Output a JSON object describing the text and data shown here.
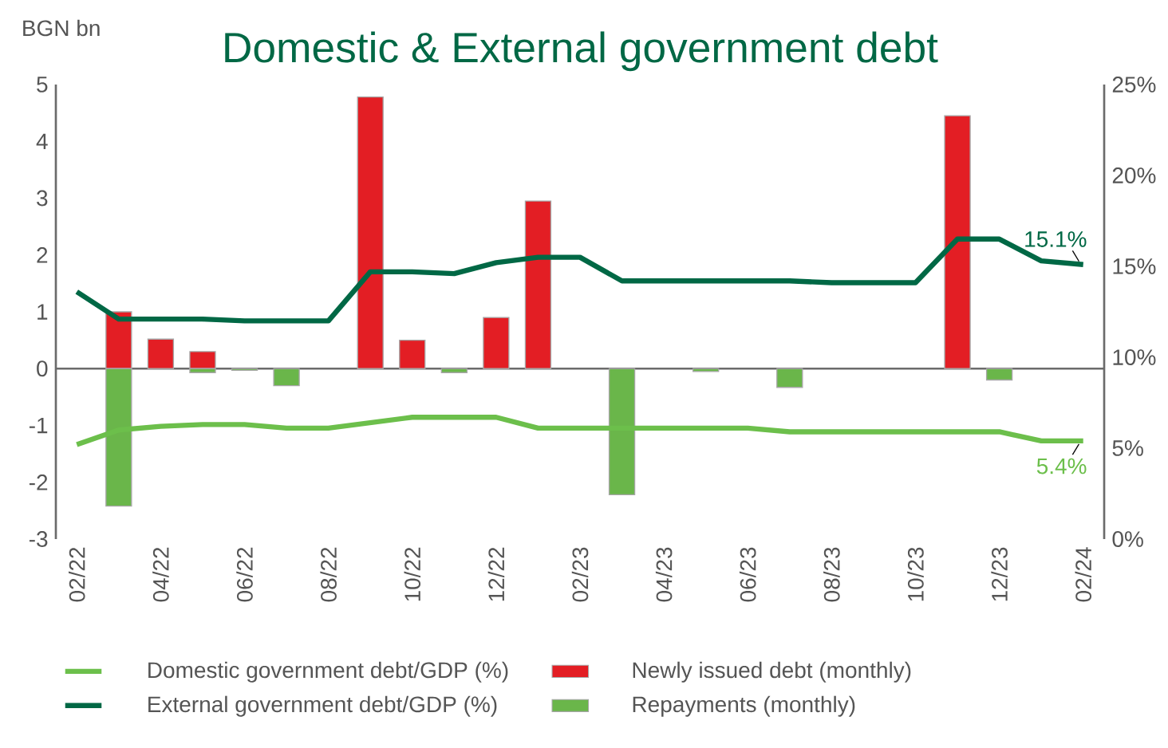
{
  "chart_data": {
    "type": "bar",
    "title": "Domestic & External government debt",
    "ylabel": "BGN bn",
    "categories": [
      "02/22",
      null,
      "04/22",
      null,
      "06/22",
      null,
      "08/22",
      null,
      "10/22",
      null,
      "12/22",
      null,
      "02/23",
      null,
      "04/23",
      null,
      "06/23",
      null,
      "08/23",
      null,
      "10/23",
      null,
      "12/23",
      null,
      "02/24"
    ],
    "series": [
      {
        "name": "Domestic government debt/GDP (%)",
        "type": "line",
        "axis": "y2",
        "color": "#6cbf4b",
        "values": [
          5.2,
          6.0,
          6.2,
          6.3,
          6.3,
          6.1,
          6.1,
          6.4,
          6.7,
          6.7,
          6.7,
          6.1,
          6.1,
          6.1,
          6.1,
          6.1,
          6.1,
          5.9,
          5.9,
          5.9,
          5.9,
          5.9,
          5.9,
          5.4,
          5.4
        ],
        "value_labels": [
          null,
          null,
          null,
          null,
          null,
          null,
          null,
          null,
          null,
          null,
          null,
          null,
          null,
          null,
          null,
          null,
          null,
          null,
          null,
          null,
          null,
          null,
          null,
          null,
          "5.4%"
        ]
      },
      {
        "name": "External government debt/GDP (%)",
        "type": "line",
        "axis": "y2",
        "color": "#006845",
        "values": [
          13.6,
          12.1,
          12.1,
          12.1,
          12.0,
          12.0,
          12.0,
          14.7,
          14.7,
          14.6,
          15.2,
          15.5,
          15.5,
          14.2,
          14.2,
          14.2,
          14.2,
          14.2,
          14.1,
          14.1,
          14.1,
          16.5,
          16.5,
          15.3,
          15.1
        ],
        "value_labels": [
          null,
          null,
          null,
          null,
          null,
          null,
          null,
          null,
          null,
          null,
          null,
          null,
          null,
          null,
          null,
          null,
          null,
          null,
          null,
          null,
          null,
          null,
          null,
          null,
          "15.1%"
        ]
      },
      {
        "name": "Newly issued debt (monthly)",
        "color": "#e31e24",
        "values": [
          null,
          1.0,
          0.52,
          0.3,
          null,
          null,
          null,
          4.78,
          0.5,
          null,
          0.9,
          2.95,
          null,
          null,
          null,
          null,
          null,
          null,
          null,
          null,
          null,
          4.45,
          null,
          null,
          null
        ]
      },
      {
        "name": "Repayments (monthly)",
        "color": "#6ab64a",
        "values": [
          null,
          -2.42,
          null,
          -0.07,
          -0.03,
          -0.3,
          null,
          null,
          null,
          -0.07,
          null,
          null,
          null,
          -2.22,
          null,
          -0.05,
          null,
          -0.33,
          null,
          null,
          null,
          null,
          -0.2,
          null,
          null
        ]
      }
    ],
    "ylim": [
      -3,
      5
    ],
    "yticks": [
      -3,
      -2,
      -1,
      0,
      1,
      2,
      3,
      4,
      5
    ],
    "y2lim": [
      0,
      25
    ],
    "y2ticks": [
      {
        "value": 0,
        "label": "0%"
      },
      {
        "value": 5,
        "label": "5%"
      },
      {
        "value": 10,
        "label": "10%"
      },
      {
        "value": 15,
        "label": "15%"
      },
      {
        "value": 20,
        "label": "20%"
      },
      {
        "value": 25,
        "label": "25%"
      }
    ],
    "legend": "bottom"
  }
}
